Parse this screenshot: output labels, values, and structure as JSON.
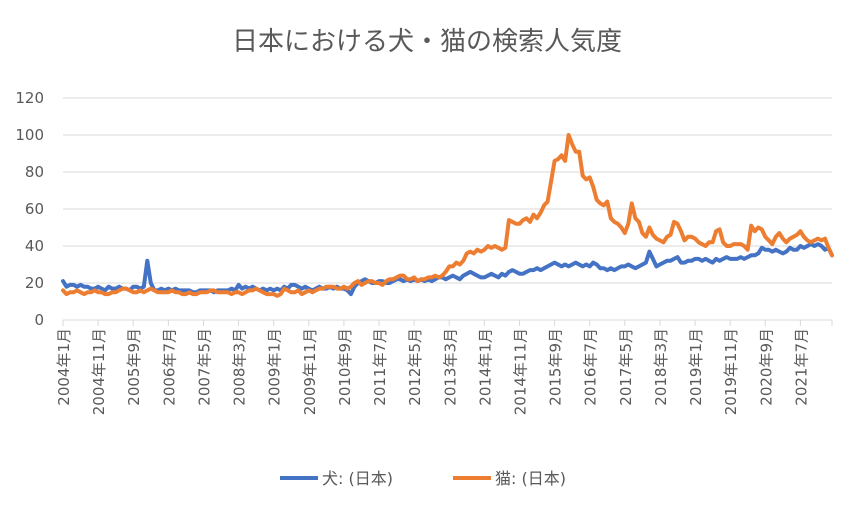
{
  "chart_data": {
    "type": "line",
    "title": "日本における犬・猫の検索人気度",
    "xlabel": "",
    "ylabel": "",
    "ylim": [
      0,
      120
    ],
    "yticks": [
      0,
      20,
      40,
      60,
      80,
      100,
      120
    ],
    "grid": true,
    "legend": "bottom",
    "x_first": "2004年1月",
    "x_frequency": "monthly",
    "xtick_labels": [
      "2004年1月",
      "2004年11月",
      "2005年9月",
      "2006年7月",
      "2007年5月",
      "2008年3月",
      "2009年1月",
      "2009年11月",
      "2010年9月",
      "2011年7月",
      "2012年5月",
      "2013年3月",
      "2014年1月",
      "2014年11月",
      "2015年9月",
      "2016年7月",
      "2017年5月",
      "2018年3月",
      "2019年1月",
      "2019年11月",
      "2020年9月",
      "2021年7月"
    ],
    "series": [
      {
        "name": "犬: (日本)",
        "color": "#4472C4",
        "values": [
          21,
          18,
          19,
          19,
          18,
          19,
          18,
          18,
          17,
          17,
          18,
          17,
          16,
          18,
          17,
          17,
          18,
          17,
          17,
          16,
          18,
          18,
          17,
          18,
          32,
          20,
          16,
          16,
          17,
          16,
          17,
          16,
          17,
          16,
          16,
          16,
          16,
          15,
          15,
          16,
          16,
          16,
          16,
          15,
          16,
          16,
          16,
          16,
          17,
          16,
          19,
          17,
          18,
          17,
          18,
          17,
          16,
          17,
          16,
          17,
          16,
          17,
          16,
          18,
          17,
          19,
          19,
          18,
          17,
          18,
          17,
          16,
          17,
          18,
          17,
          17,
          18,
          17,
          18,
          17,
          17,
          16,
          14,
          18,
          20,
          21,
          22,
          21,
          20,
          20,
          21,
          21,
          20,
          20,
          21,
          22,
          22,
          21,
          22,
          21,
          22,
          21,
          22,
          21,
          22,
          21,
          22,
          23,
          23,
          22,
          23,
          24,
          23,
          22,
          24,
          25,
          26,
          25,
          24,
          23,
          23,
          24,
          25,
          24,
          23,
          25,
          24,
          26,
          27,
          26,
          25,
          25,
          26,
          27,
          27,
          28,
          27,
          28,
          29,
          30,
          31,
          30,
          29,
          30,
          29,
          30,
          31,
          30,
          29,
          30,
          29,
          31,
          30,
          28,
          28,
          27,
          28,
          27,
          28,
          29,
          29,
          30,
          29,
          28,
          29,
          30,
          31,
          37,
          33,
          29,
          30,
          31,
          32,
          32,
          33,
          34,
          31,
          31,
          32,
          32,
          33,
          33,
          32,
          33,
          32,
          31,
          33,
          32,
          33,
          34,
          33,
          33,
          33,
          34,
          33,
          34,
          35,
          35,
          36,
          39,
          38,
          38,
          37,
          38,
          37,
          36,
          37,
          39,
          38,
          38,
          40,
          39,
          40,
          41,
          40,
          41,
          40,
          38,
          39,
          35
        ]
      },
      {
        "name": "猫: (日本)",
        "color": "#ED7D31",
        "values": [
          16,
          14,
          15,
          15,
          16,
          15,
          14,
          15,
          15,
          16,
          15,
          15,
          14,
          14,
          15,
          15,
          16,
          17,
          17,
          16,
          15,
          15,
          16,
          15,
          16,
          17,
          16,
          15,
          15,
          15,
          15,
          16,
          15,
          15,
          14,
          14,
          15,
          14,
          14,
          15,
          15,
          15,
          16,
          16,
          15,
          15,
          15,
          15,
          14,
          15,
          15,
          14,
          15,
          16,
          16,
          17,
          16,
          15,
          14,
          14,
          14,
          13,
          14,
          17,
          16,
          15,
          15,
          16,
          14,
          15,
          16,
          15,
          16,
          17,
          17,
          18,
          18,
          18,
          17,
          17,
          18,
          17,
          18,
          20,
          21,
          19,
          20,
          21,
          21,
          20,
          20,
          19,
          21,
          22,
          22,
          23,
          24,
          24,
          22,
          22,
          23,
          21,
          22,
          22,
          23,
          23,
          24,
          23,
          24,
          26,
          29,
          29,
          31,
          30,
          32,
          36,
          37,
          36,
          38,
          37,
          38,
          40,
          39,
          40,
          39,
          38,
          39,
          54,
          53,
          52,
          52,
          54,
          55,
          53,
          57,
          55,
          58,
          62,
          64,
          75,
          86,
          87,
          89,
          86,
          100,
          95,
          91,
          91,
          78,
          76,
          77,
          72,
          65,
          63,
          62,
          64,
          55,
          53,
          52,
          50,
          47,
          52,
          63,
          55,
          53,
          47,
          45,
          50,
          46,
          44,
          43,
          42,
          45,
          46,
          53,
          52,
          48,
          43,
          45,
          45,
          44,
          42,
          41,
          40,
          42,
          42,
          48,
          49,
          42,
          40,
          40,
          41,
          41,
          41,
          40,
          38,
          51,
          48,
          50,
          49,
          45,
          43,
          41,
          45,
          47,
          44,
          42,
          44,
          45,
          46,
          48,
          45,
          43,
          42,
          43,
          44,
          43,
          44,
          39,
          35
        ]
      }
    ]
  }
}
